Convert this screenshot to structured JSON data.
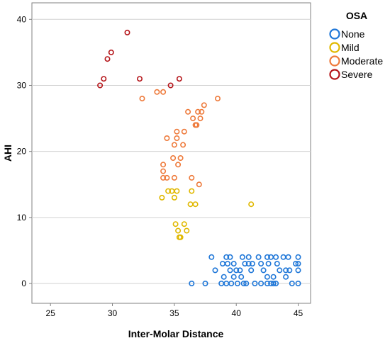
{
  "chart_data": {
    "type": "scatter",
    "xlabel": "Inter-Molar Distance",
    "ylabel": "AHI",
    "xlim": [
      23.5,
      46
    ],
    "ylim": [
      -3,
      42.5
    ],
    "xticks": [
      25,
      30,
      35,
      40,
      45
    ],
    "yticks": [
      0,
      10,
      20,
      30,
      40
    ],
    "grid": "horizontal",
    "legend": {
      "title": "OSA",
      "position": "right"
    },
    "series": [
      {
        "name": "None",
        "color": "#1f77d8",
        "points": [
          [
            36.4,
            0
          ],
          [
            37.5,
            0
          ],
          [
            38.8,
            0
          ],
          [
            39.0,
            1
          ],
          [
            39.2,
            0
          ],
          [
            39.6,
            0
          ],
          [
            40.1,
            0
          ],
          [
            40.6,
            0
          ],
          [
            40.8,
            0
          ],
          [
            41.5,
            0
          ],
          [
            42.0,
            0
          ],
          [
            42.5,
            0
          ],
          [
            42.8,
            0
          ],
          [
            43.0,
            0
          ],
          [
            43.2,
            0
          ],
          [
            44.5,
            0
          ],
          [
            45.0,
            0
          ],
          [
            38.3,
            2
          ],
          [
            39.5,
            2
          ],
          [
            40.0,
            2
          ],
          [
            40.3,
            2
          ],
          [
            41.2,
            2
          ],
          [
            42.2,
            2
          ],
          [
            43.5,
            2
          ],
          [
            44.0,
            2
          ],
          [
            44.3,
            2
          ],
          [
            45.0,
            2
          ],
          [
            38.9,
            3
          ],
          [
            39.3,
            3
          ],
          [
            39.8,
            3
          ],
          [
            40.7,
            3
          ],
          [
            41.0,
            3
          ],
          [
            41.3,
            3
          ],
          [
            42.0,
            3
          ],
          [
            42.6,
            3
          ],
          [
            43.3,
            3
          ],
          [
            44.8,
            3
          ],
          [
            45.0,
            3
          ],
          [
            38.0,
            4
          ],
          [
            39.2,
            4
          ],
          [
            39.5,
            4
          ],
          [
            40.5,
            4
          ],
          [
            41.0,
            4
          ],
          [
            41.8,
            4
          ],
          [
            42.5,
            4
          ],
          [
            42.8,
            4
          ],
          [
            43.2,
            4
          ],
          [
            43.8,
            4
          ],
          [
            44.2,
            4
          ],
          [
            45.0,
            4
          ],
          [
            39.8,
            1
          ],
          [
            40.4,
            1
          ],
          [
            42.5,
            1
          ],
          [
            43.0,
            1
          ],
          [
            44.0,
            1
          ]
        ]
      },
      {
        "name": "Mild",
        "color": "#e0b800",
        "points": [
          [
            34.0,
            13
          ],
          [
            34.5,
            14
          ],
          [
            34.8,
            14
          ],
          [
            35.0,
            13
          ],
          [
            35.2,
            14
          ],
          [
            36.3,
            12
          ],
          [
            36.4,
            14
          ],
          [
            36.7,
            12
          ],
          [
            41.2,
            12
          ],
          [
            35.1,
            9
          ],
          [
            35.8,
            9
          ],
          [
            35.3,
            8
          ],
          [
            36.0,
            8
          ],
          [
            35.4,
            7
          ],
          [
            35.5,
            7
          ]
        ]
      },
      {
        "name": "Moderate",
        "color": "#ee7a3b",
        "points": [
          [
            34.1,
            16
          ],
          [
            34.1,
            17
          ],
          [
            34.1,
            18
          ],
          [
            34.4,
            16
          ],
          [
            34.9,
            19
          ],
          [
            35.0,
            16
          ],
          [
            35.3,
            18
          ],
          [
            35.5,
            19
          ],
          [
            36.4,
            16
          ],
          [
            37.0,
            15
          ],
          [
            34.4,
            22
          ],
          [
            35.0,
            21
          ],
          [
            35.2,
            22
          ],
          [
            35.2,
            23
          ],
          [
            35.7,
            21
          ],
          [
            35.8,
            23
          ],
          [
            36.1,
            26
          ],
          [
            36.5,
            25
          ],
          [
            36.7,
            24
          ],
          [
            36.8,
            24
          ],
          [
            36.9,
            26
          ],
          [
            37.1,
            25
          ],
          [
            37.2,
            26
          ],
          [
            37.4,
            27
          ],
          [
            38.5,
            28
          ],
          [
            32.4,
            28
          ],
          [
            33.6,
            29
          ],
          [
            34.1,
            29
          ]
        ]
      },
      {
        "name": "Severe",
        "color": "#b5161b",
        "points": [
          [
            29.0,
            30
          ],
          [
            29.3,
            31
          ],
          [
            29.6,
            34
          ],
          [
            29.9,
            35
          ],
          [
            31.2,
            38
          ],
          [
            32.2,
            31
          ],
          [
            34.7,
            30
          ],
          [
            35.4,
            31
          ]
        ]
      }
    ]
  }
}
